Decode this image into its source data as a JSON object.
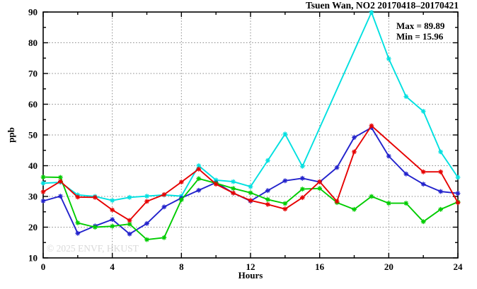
{
  "title": "Tsuen Wan, NO2 20170418–20170421",
  "annotation": {
    "max_label": "Max = 89.89",
    "min_label": "Min = 15.96"
  },
  "watermark": "© 2025 ENVF, HKUST",
  "colors": {
    "background": "#ffffff",
    "border": "#000000",
    "grid": "#888888",
    "text": "#000000",
    "watermark": "#d9d9d9",
    "cyan_series": "#00e0e0",
    "red_series": "#e60000",
    "blue_series": "#2222cc",
    "green_series": "#00cc00"
  },
  "chart_data": {
    "type": "line",
    "title": "Tsuen Wan, NO2 20170418–20170421",
    "xlabel": "Hours",
    "ylabel": "ppb",
    "xlim": [
      0,
      24
    ],
    "ylim": [
      10,
      90
    ],
    "grid": true,
    "legend_position": "none",
    "x_ticks_major": [
      0,
      4,
      8,
      12,
      16,
      20,
      24
    ],
    "x_ticks_minor": [
      2,
      6,
      10,
      14,
      18,
      22
    ],
    "y_ticks_major": [
      10,
      20,
      30,
      40,
      50,
      60,
      70,
      80,
      90
    ],
    "y_ticks_minor": [
      15,
      25,
      35,
      45,
      55,
      65,
      75,
      85
    ],
    "x_gridlines": [
      4,
      8,
      12,
      16,
      20
    ],
    "y_gridlines": [
      20,
      30,
      40,
      50,
      60,
      70,
      80
    ],
    "x": [
      0,
      1,
      2,
      3,
      4,
      5,
      6,
      7,
      8,
      9,
      10,
      11,
      12,
      13,
      14,
      15,
      16,
      17,
      18,
      19,
      20,
      21,
      22,
      23,
      24
    ],
    "max": 89.89,
    "min": 15.96,
    "series": [
      {
        "name": "cyan",
        "color": "#00e0e0",
        "values": [
          34.3,
          34.6,
          30.5,
          30.0,
          28.7,
          29.7,
          30.1,
          30.5,
          30.1,
          40.0,
          35.3,
          34.8,
          33.2,
          41.7,
          50.3,
          39.8,
          null,
          null,
          null,
          89.89,
          74.8,
          62.5,
          57.7,
          44.5,
          36.2
        ]
      },
      {
        "name": "blue",
        "color": "#2222cc",
        "values": [
          28.5,
          30.1,
          18.0,
          20.4,
          22.5,
          17.8,
          21.2,
          26.6,
          29.5,
          32.0,
          34.5,
          31.1,
          28.5,
          31.9,
          35.1,
          35.9,
          34.7,
          39.4,
          49.2,
          52.4,
          43.1,
          37.3,
          34.0,
          31.6,
          31.0
        ]
      },
      {
        "name": "green",
        "color": "#00cc00",
        "values": [
          36.3,
          36.2,
          21.4,
          20.0,
          20.3,
          21.0,
          15.96,
          16.6,
          28.9,
          35.8,
          34.3,
          32.6,
          31.2,
          29.0,
          27.7,
          32.4,
          32.6,
          28.0,
          25.8,
          30.0,
          27.8,
          27.8,
          21.8,
          25.8,
          28.2
        ]
      },
      {
        "name": "red",
        "color": "#e60000",
        "values": [
          31.5,
          34.9,
          29.8,
          29.7,
          25.6,
          22.2,
          28.4,
          30.6,
          34.7,
          38.9,
          34.0,
          31.1,
          28.7,
          27.4,
          25.9,
          29.6,
          34.8,
          28.4,
          44.5,
          53.0,
          null,
          null,
          38.0,
          38.0,
          28.0
        ]
      }
    ]
  }
}
